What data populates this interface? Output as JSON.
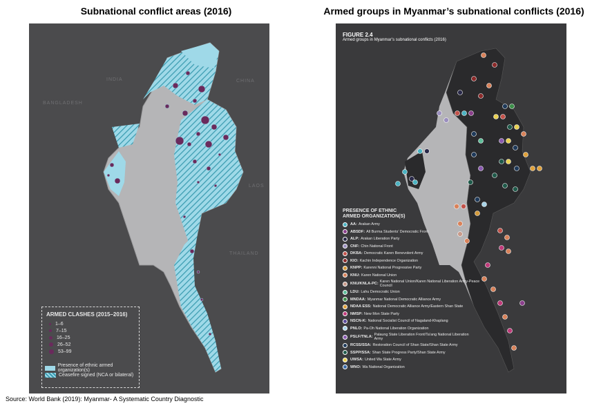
{
  "titles": {
    "left": "Subnational conflict areas (2016)",
    "right": "Armed groups in Myanmar’s subnational conflicts (2016)"
  },
  "left_map": {
    "countries": [
      "INDIA",
      "CHINA",
      "BANGLADESH",
      "LAOS",
      "THAILAND"
    ],
    "legend": {
      "title": "ARMED CLASHES (2015–2016)",
      "ranges": [
        "1–6",
        "7–15",
        "16–25",
        "26–52",
        "53–99"
      ],
      "areas": [
        "Presence of ethnic armed organization(s)",
        "Ceasefire signed (NCA or bilateral)"
      ]
    },
    "colors": {
      "land": "#b5b5b7",
      "ethnic_area": "#9fd9e8",
      "hatch": "#3a9bb0",
      "clash": "#6a2a5c"
    }
  },
  "right_map": {
    "figure_label": "FIGURE 2.4",
    "figure_caption": "Armed groups in Myanmar’s subnational conflicts (2016)",
    "legend_title_1": "PRESENCE OF ETHNIC",
    "legend_title_2": "ARMED ORGANIZATION(S)",
    "groups": [
      {
        "abbr": "AA",
        "name": "Arakan Army",
        "color": "#4bb3c2"
      },
      {
        "abbr": "ABSDF",
        "name": "All Burma Students’ Democratic Front",
        "color": "#8a3f8c"
      },
      {
        "abbr": "ALP",
        "name": "Arakan Liberation Party",
        "color": "#2a2a4a"
      },
      {
        "abbr": "CNF",
        "name": "Chin National Front",
        "color": "#9b8fbf"
      },
      {
        "abbr": "DKBA",
        "name": "Democratic Karen Benevolent Army",
        "color": "#c2524a"
      },
      {
        "abbr": "KIO",
        "name": "Kachin Independence Organization",
        "color": "#8b2a2a"
      },
      {
        "abbr": "KNPP",
        "name": "Karenni National Progressive Party",
        "color": "#d49a3a"
      },
      {
        "abbr": "KNU",
        "name": "Karen National Union",
        "color": "#d9825a"
      },
      {
        "abbr": "KNU/KNLA-PC",
        "name": "Karen National Union/Karen National Liberation Army-Peace Council",
        "color": "#c89a8a"
      },
      {
        "abbr": "LDU",
        "name": "Lahu Democratic Union",
        "color": "#5fbf9a"
      },
      {
        "abbr": "MNDAA",
        "name": "Myanmar National Democratic Alliance Army",
        "color": "#3d8f4a"
      },
      {
        "abbr": "NDAA ESS",
        "name": "National Democratic Alliance Army/Eastern Shan State",
        "color": "#e0a13a"
      },
      {
        "abbr": "NMSP",
        "name": "New Mon State Party",
        "color": "#c03a7a"
      },
      {
        "abbr": "NSCN-K",
        "name": "National Socialist Council of Nagaland-Khaplang",
        "color": "#5a4a9a"
      },
      {
        "abbr": "PNLO",
        "name": "Pa-Oh National Liberation Organization",
        "color": "#a8d4e8"
      },
      {
        "abbr": "PSLF/TNLA",
        "name": "Palaung State Liberation Front/Ta’ang National Liberation Army",
        "color": "#8a5ab0"
      },
      {
        "abbr": "RCSS/SSA",
        "name": "Restoration Council of Shan State/Shan State Army",
        "color": "#1f3a5a"
      },
      {
        "abbr": "SSPP/SSA",
        "name": "Shan State Progress Party/Shan State Army",
        "color": "#1f5a4a"
      },
      {
        "abbr": "UWSA",
        "name": "United Wa State Army",
        "color": "#e8d050"
      },
      {
        "abbr": "WNO",
        "name": "Wa National Organization",
        "color": "#3a6aa8"
      }
    ]
  },
  "source": "Source: World Bank (2019): Myanmar- A Systematic Country Diagnostic"
}
